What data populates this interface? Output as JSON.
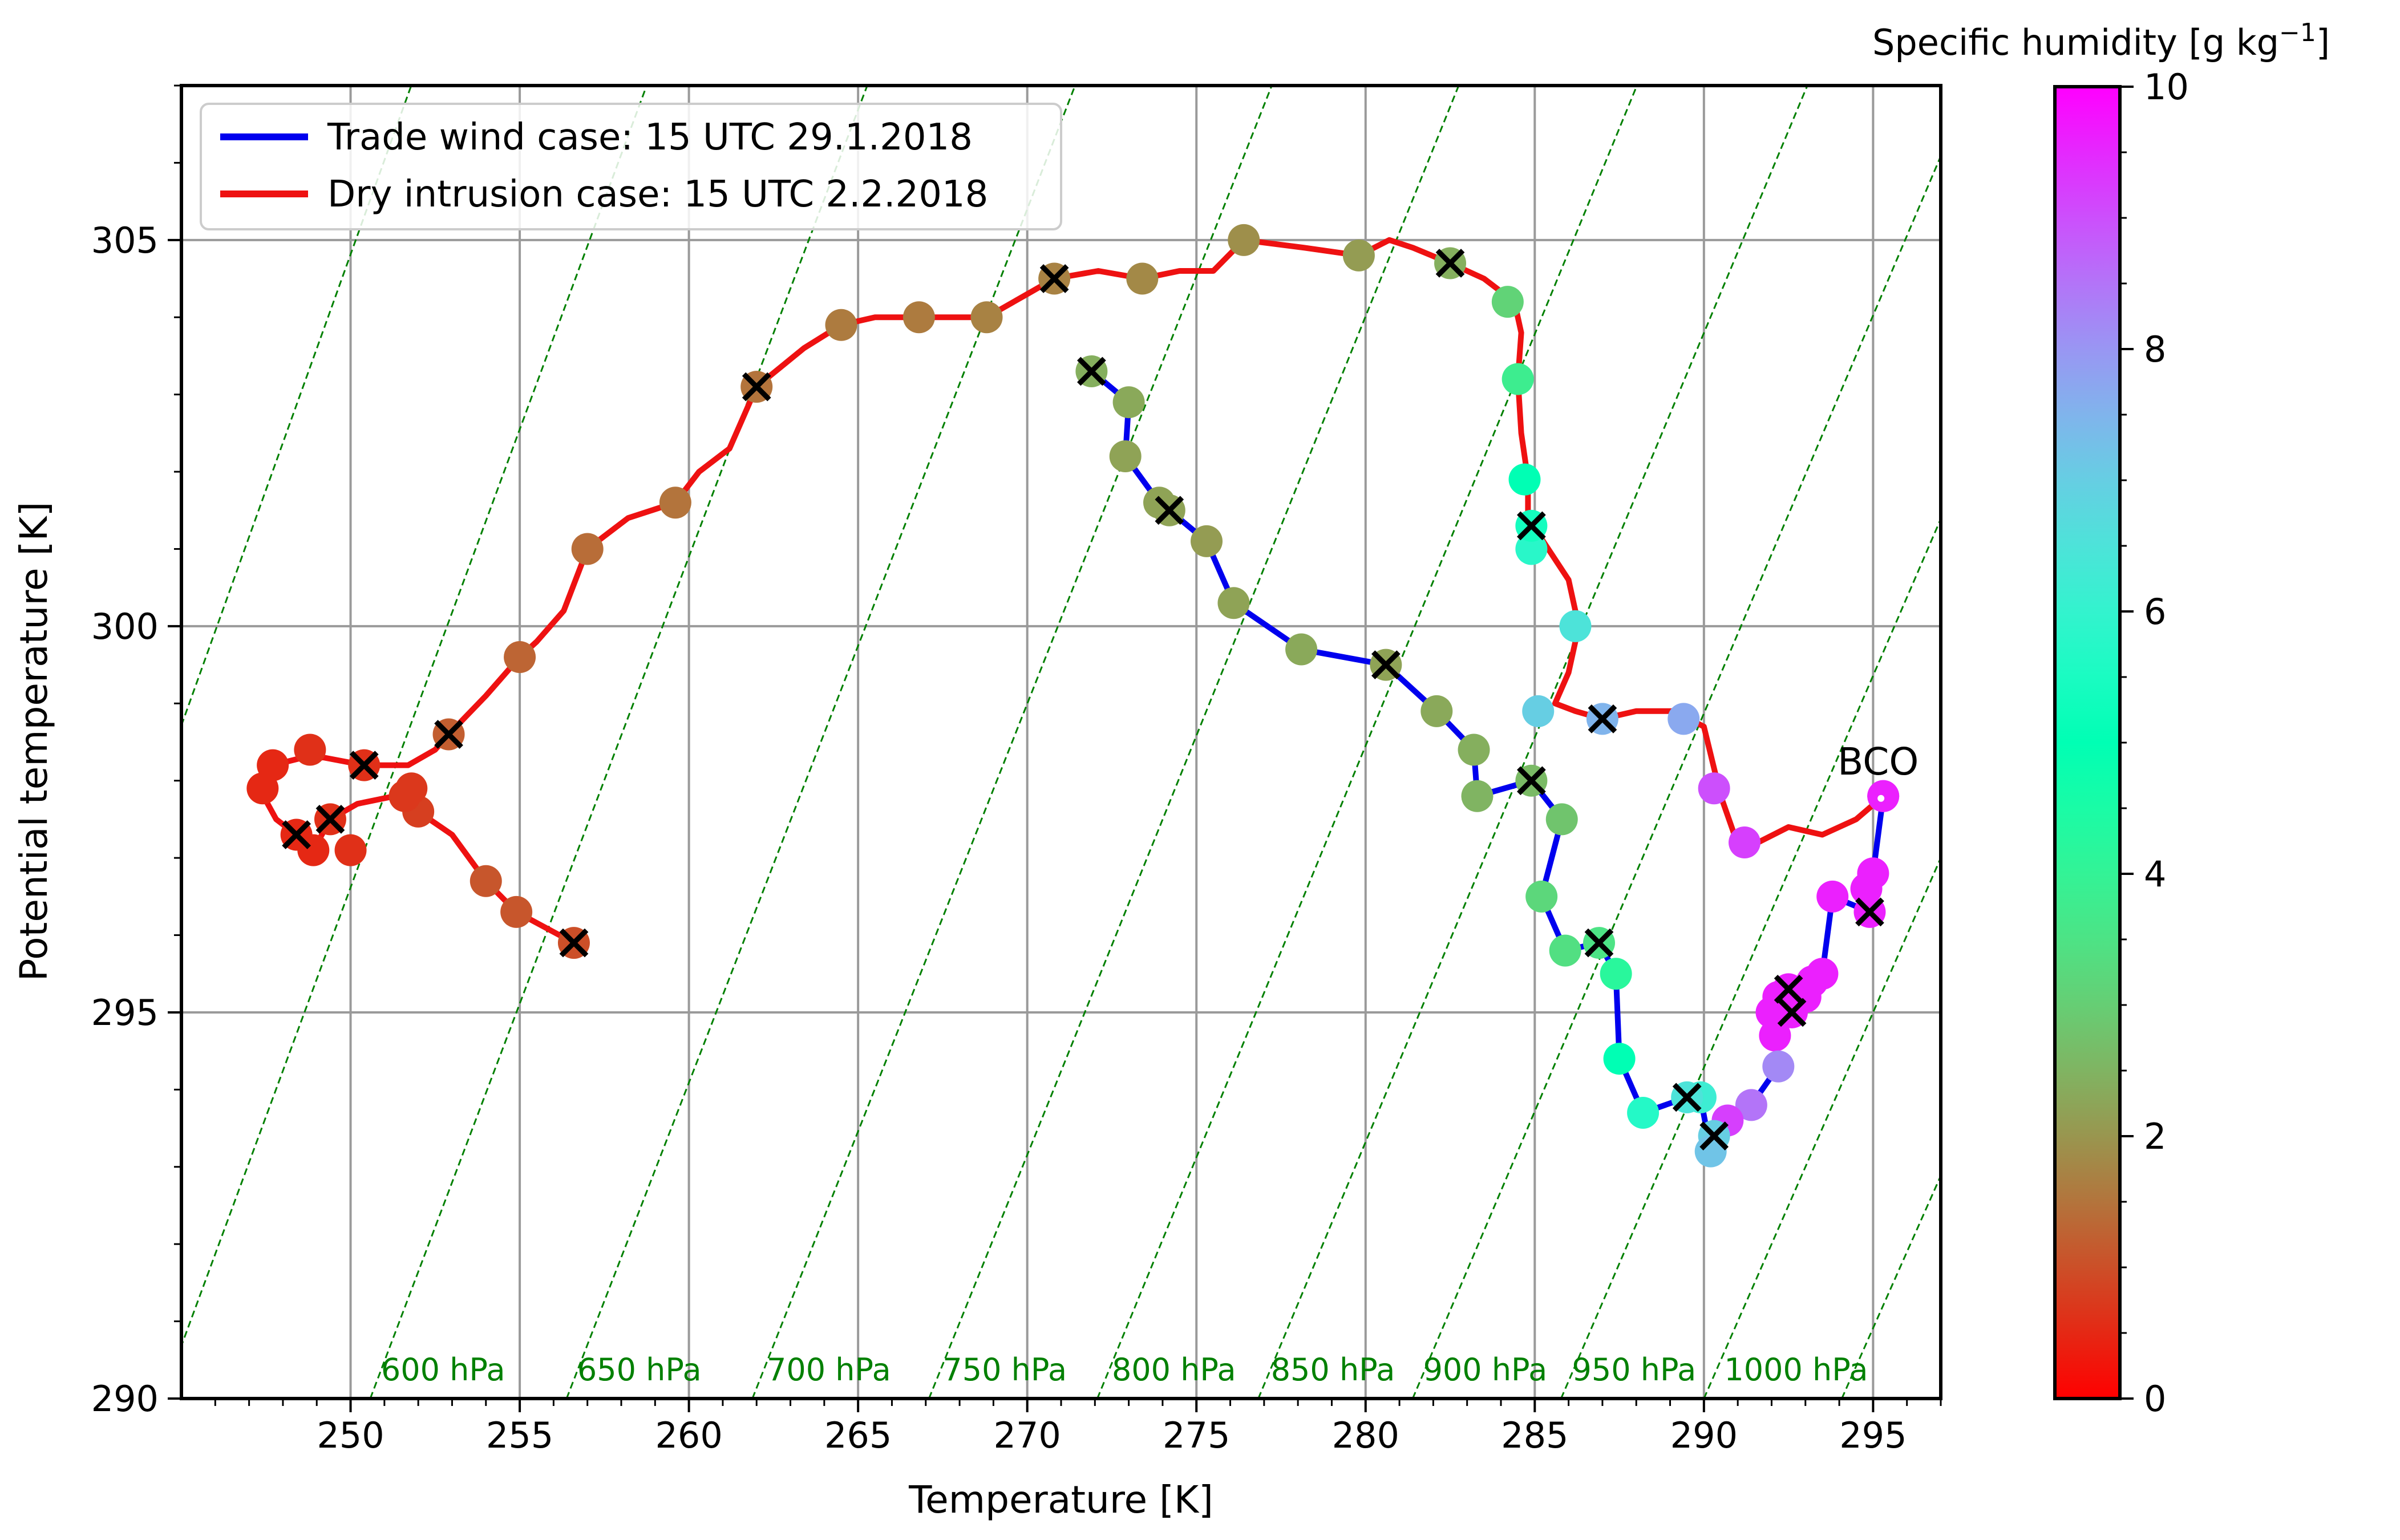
{
  "chart_data": {
    "type": "scatter",
    "xlabel": "Temperature [K]",
    "ylabel": "Potential temperature [K]",
    "xlim": [
      245,
      297
    ],
    "ylim": [
      290,
      307
    ],
    "xticks": [
      250,
      255,
      260,
      265,
      270,
      275,
      280,
      285,
      290,
      295
    ],
    "yticks": [
      290,
      295,
      300,
      305
    ],
    "grid": true,
    "legend": {
      "placement": "top-left",
      "entries": [
        {
          "label": "Trade wind case: 15 UTC 29.1.2018",
          "color": "#0000ee"
        },
        {
          "label": "Dry intrusion case: 15 UTC 2.2.2018",
          "color": "#ee1111"
        }
      ]
    },
    "isobars": {
      "color": "#008000",
      "labels": [
        "600 hPa",
        "650 hPa",
        "700 hPa",
        "750 hPa",
        "800 hPa",
        "850 hPa",
        "900 hPa",
        "950 hPa",
        "1000 hPa"
      ],
      "pressures": [
        600,
        650,
        700,
        750,
        800,
        850,
        900,
        950,
        1000
      ],
      "label_temps": [
        250.9,
        256.7,
        262.3,
        267.5,
        272.5,
        277.2,
        281.7,
        286.1,
        290.6
      ],
      "extra_pressures": [
        550,
        500,
        1050
      ]
    },
    "colorbar": {
      "title": "Specific humidity [g kg",
      "title_sup": "−1",
      "title_close": "]",
      "min": 0,
      "max": 10,
      "ticks": [
        "0",
        "2",
        "4",
        "6",
        "8",
        "10"
      ],
      "colormap": "rainbow"
    },
    "annotation": {
      "text": "BCO",
      "x": 295.3,
      "y": 297.8
    },
    "series": [
      {
        "name": "Trade wind case: 15 UTC 29.1.2018",
        "color": "#0000ee",
        "points": [
          [
            295.3,
            297.8,
            9.6
          ],
          [
            295.0,
            296.8,
            9.6
          ],
          [
            294.8,
            296.6,
            9.6
          ],
          [
            294.9,
            296.3,
            9.6
          ],
          [
            293.8,
            296.5,
            9.6
          ],
          [
            293.5,
            295.5,
            9.6
          ],
          [
            293.2,
            295.4,
            9.6
          ],
          [
            293.0,
            295.2,
            9.6
          ],
          [
            292.6,
            295.0,
            9.6
          ],
          [
            292.5,
            295.3,
            9.6
          ],
          [
            292.2,
            295.2,
            9.6
          ],
          [
            292.0,
            295.0,
            9.6
          ],
          [
            292.1,
            294.7,
            9.6
          ],
          [
            292.2,
            294.3,
            8.2
          ],
          [
            291.4,
            293.8,
            8.5
          ],
          [
            290.7,
            293.6,
            9.2
          ],
          [
            290.3,
            293.4,
            7.0
          ],
          [
            290.2,
            293.2,
            7.2
          ],
          [
            289.9,
            293.9,
            6.2
          ],
          [
            289.5,
            293.9,
            6.5
          ],
          [
            288.2,
            293.7,
            5.7
          ],
          [
            287.5,
            294.4,
            5.0
          ],
          [
            287.4,
            295.5,
            4.2
          ],
          [
            286.9,
            295.9,
            3.5
          ],
          [
            285.9,
            295.8,
            3.4
          ],
          [
            285.2,
            296.5,
            3.2
          ],
          [
            285.8,
            297.5,
            2.8
          ],
          [
            284.9,
            298.0,
            2.6
          ],
          [
            283.3,
            297.8,
            2.5
          ],
          [
            283.2,
            298.4,
            2.4
          ],
          [
            282.1,
            298.9,
            2.3
          ],
          [
            280.6,
            299.5,
            2.2
          ],
          [
            278.1,
            299.7,
            2.3
          ],
          [
            276.1,
            300.3,
            2.2
          ],
          [
            275.3,
            301.1,
            2.1
          ],
          [
            274.2,
            301.5,
            2.2
          ],
          [
            273.9,
            301.6,
            2.2
          ],
          [
            272.9,
            302.2,
            2.2
          ],
          [
            273.0,
            302.9,
            2.3
          ],
          [
            271.9,
            303.3,
            2.4
          ]
        ],
        "crosses": [
          [
            294.9,
            296.3
          ],
          [
            292.5,
            295.3
          ],
          [
            292.6,
            295.0
          ],
          [
            290.3,
            293.4
          ],
          [
            289.5,
            293.9
          ],
          [
            286.9,
            295.9
          ],
          [
            284.9,
            298.0
          ],
          [
            280.6,
            299.5
          ],
          [
            274.2,
            301.5
          ],
          [
            271.9,
            303.3
          ]
        ]
      },
      {
        "name": "Dry intrusion case: 15 UTC 2.2.2018",
        "color": "#ee1111",
        "points": [
          [
            295.3,
            297.8,
            9.6
          ],
          [
            291.2,
            297.2,
            9.2
          ],
          [
            290.3,
            297.9,
            9.0
          ],
          [
            289.4,
            298.8,
            7.7
          ],
          [
            287.0,
            298.8,
            7.5
          ],
          [
            285.1,
            298.9,
            7.0
          ],
          [
            286.2,
            300.0,
            6.5
          ],
          [
            284.9,
            301.0,
            5.8
          ],
          [
            284.9,
            301.3,
            5.4
          ],
          [
            284.7,
            301.9,
            5.0
          ],
          [
            284.5,
            303.2,
            3.8
          ],
          [
            284.2,
            304.2,
            3.1
          ],
          [
            282.5,
            304.7,
            2.4
          ],
          [
            279.8,
            304.8,
            2.1
          ],
          [
            276.4,
            305.0,
            1.9
          ],
          [
            273.4,
            304.5,
            1.8
          ],
          [
            270.8,
            304.5,
            1.7
          ],
          [
            268.8,
            304.0,
            1.7
          ],
          [
            266.8,
            304.0,
            1.6
          ],
          [
            264.5,
            303.9,
            1.6
          ],
          [
            262.0,
            303.1,
            1.5
          ],
          [
            259.6,
            301.6,
            1.5
          ],
          [
            257.0,
            301.0,
            1.4
          ],
          [
            255.0,
            299.6,
            1.3
          ],
          [
            252.9,
            298.6,
            1.2
          ],
          [
            254.9,
            296.3,
            1.1
          ],
          [
            254.0,
            296.7,
            1.1
          ],
          [
            256.6,
            295.9,
            1.0
          ],
          [
            252.0,
            297.6,
            0.8
          ],
          [
            251.6,
            297.8,
            0.7
          ],
          [
            251.8,
            297.9,
            0.7
          ],
          [
            250.4,
            298.2,
            0.6
          ],
          [
            248.8,
            298.4,
            0.6
          ],
          [
            247.7,
            298.2,
            0.5
          ],
          [
            247.4,
            297.9,
            0.5
          ],
          [
            248.4,
            297.3,
            0.5
          ],
          [
            248.9,
            297.1,
            0.5
          ],
          [
            249.4,
            297.5,
            0.6
          ],
          [
            250.0,
            297.1,
            0.6
          ]
        ],
        "path": [
          [
            295.3,
            297.8
          ],
          [
            294.5,
            297.5
          ],
          [
            293.5,
            297.3
          ],
          [
            292.5,
            297.4
          ],
          [
            291.6,
            297.2
          ],
          [
            290.9,
            297.3
          ],
          [
            290.5,
            297.8
          ],
          [
            290.0,
            298.7
          ],
          [
            289.1,
            298.9
          ],
          [
            288.0,
            298.9
          ],
          [
            287.0,
            298.8
          ],
          [
            286.2,
            298.9
          ],
          [
            285.6,
            299.0
          ],
          [
            286.0,
            299.4
          ],
          [
            286.3,
            300.0
          ],
          [
            286.0,
            300.6
          ],
          [
            285.4,
            301.0
          ],
          [
            284.8,
            301.4
          ],
          [
            284.8,
            301.9
          ],
          [
            284.6,
            302.5
          ],
          [
            284.5,
            303.2
          ],
          [
            284.6,
            303.8
          ],
          [
            284.4,
            304.2
          ],
          [
            283.5,
            304.5
          ],
          [
            282.5,
            304.7
          ],
          [
            281.4,
            304.9
          ],
          [
            280.7,
            305.0
          ],
          [
            279.8,
            304.8
          ],
          [
            278.2,
            304.9
          ],
          [
            276.4,
            305.0
          ],
          [
            275.5,
            304.6
          ],
          [
            274.5,
            304.6
          ],
          [
            273.4,
            304.5
          ],
          [
            272.1,
            304.6
          ],
          [
            270.8,
            304.5
          ],
          [
            270.0,
            304.3
          ],
          [
            268.8,
            304.0
          ],
          [
            267.8,
            304.0
          ],
          [
            266.8,
            304.0
          ],
          [
            265.5,
            304.0
          ],
          [
            264.5,
            303.9
          ],
          [
            263.4,
            303.6
          ],
          [
            262.0,
            303.1
          ],
          [
            261.2,
            302.3
          ],
          [
            260.3,
            302.0
          ],
          [
            259.6,
            301.6
          ],
          [
            258.2,
            301.4
          ],
          [
            257.0,
            301.0
          ],
          [
            256.3,
            300.2
          ],
          [
            255.5,
            299.8
          ],
          [
            255.0,
            299.6
          ],
          [
            254.0,
            299.1
          ],
          [
            252.9,
            298.6
          ],
          [
            252.5,
            298.4
          ],
          [
            251.7,
            298.2
          ],
          [
            250.4,
            298.2
          ],
          [
            249.2,
            298.3
          ],
          [
            248.6,
            298.3
          ],
          [
            247.7,
            298.2
          ],
          [
            247.3,
            297.9
          ],
          [
            247.8,
            297.5
          ],
          [
            248.4,
            297.3
          ],
          [
            248.9,
            297.1
          ],
          [
            249.4,
            297.5
          ],
          [
            250.2,
            297.7
          ],
          [
            251.3,
            297.8
          ],
          [
            252.0,
            297.6
          ],
          [
            253.0,
            297.3
          ],
          [
            254.0,
            296.7
          ],
          [
            254.9,
            296.3
          ],
          [
            256.6,
            295.9
          ]
        ],
        "crosses": [
          [
            287.0,
            298.8
          ],
          [
            284.9,
            301.3
          ],
          [
            282.5,
            304.7
          ],
          [
            270.8,
            304.5
          ],
          [
            262.0,
            303.1
          ],
          [
            252.9,
            298.6
          ],
          [
            250.4,
            298.2
          ],
          [
            249.4,
            297.5
          ],
          [
            248.4,
            297.3
          ],
          [
            256.6,
            295.9
          ]
        ]
      }
    ]
  }
}
